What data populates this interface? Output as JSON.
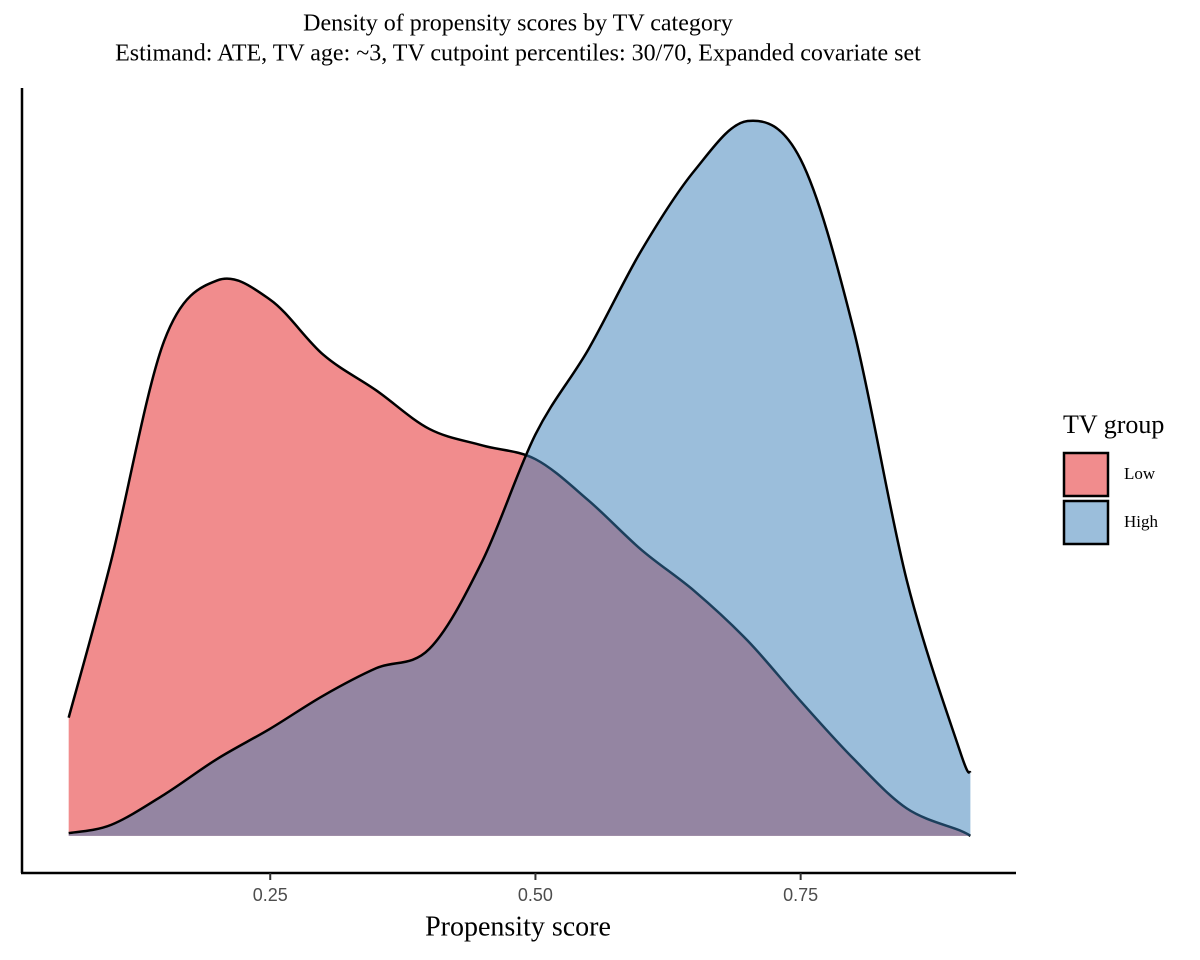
{
  "chart_data": {
    "type": "density",
    "title": "Density of propensity scores by TV category",
    "subtitle": "Estimand: ATE, TV age: ~3, TV cutpoint percentiles: 30/70, Expanded covariate set",
    "x_label": "Propensity score",
    "legend_title": "TV group",
    "legend_position": "right",
    "alpha": 0.5,
    "outline_color": "#000000",
    "x": [
      0.06,
      0.1,
      0.15,
      0.2,
      0.25,
      0.3,
      0.35,
      0.4,
      0.45,
      0.5,
      0.55,
      0.6,
      0.65,
      0.7,
      0.75,
      0.8,
      0.85,
      0.9,
      0.91
    ],
    "series": [
      {
        "name": "Low",
        "color": "#E41A1C",
        "values": [
          0.43,
          1.0,
          1.8,
          2.02,
          1.95,
          1.75,
          1.62,
          1.48,
          1.42,
          1.37,
          1.22,
          1.04,
          0.89,
          0.71,
          0.49,
          0.28,
          0.1,
          0.02,
          0.0
        ]
      },
      {
        "name": "High",
        "color": "#377EB8",
        "values": [
          0.01,
          0.04,
          0.15,
          0.28,
          0.39,
          0.51,
          0.61,
          0.68,
          1.0,
          1.46,
          1.77,
          2.13,
          2.42,
          2.6,
          2.46,
          1.84,
          0.93,
          0.31,
          0.23
        ]
      }
    ],
    "xlim": [
      0.016,
      0.953
    ],
    "ylim": [
      -0.135,
      2.72
    ],
    "xticks": [
      0.25,
      {
        "value": 0.5,
        "label": "0.50"
      },
      0.75
    ]
  }
}
